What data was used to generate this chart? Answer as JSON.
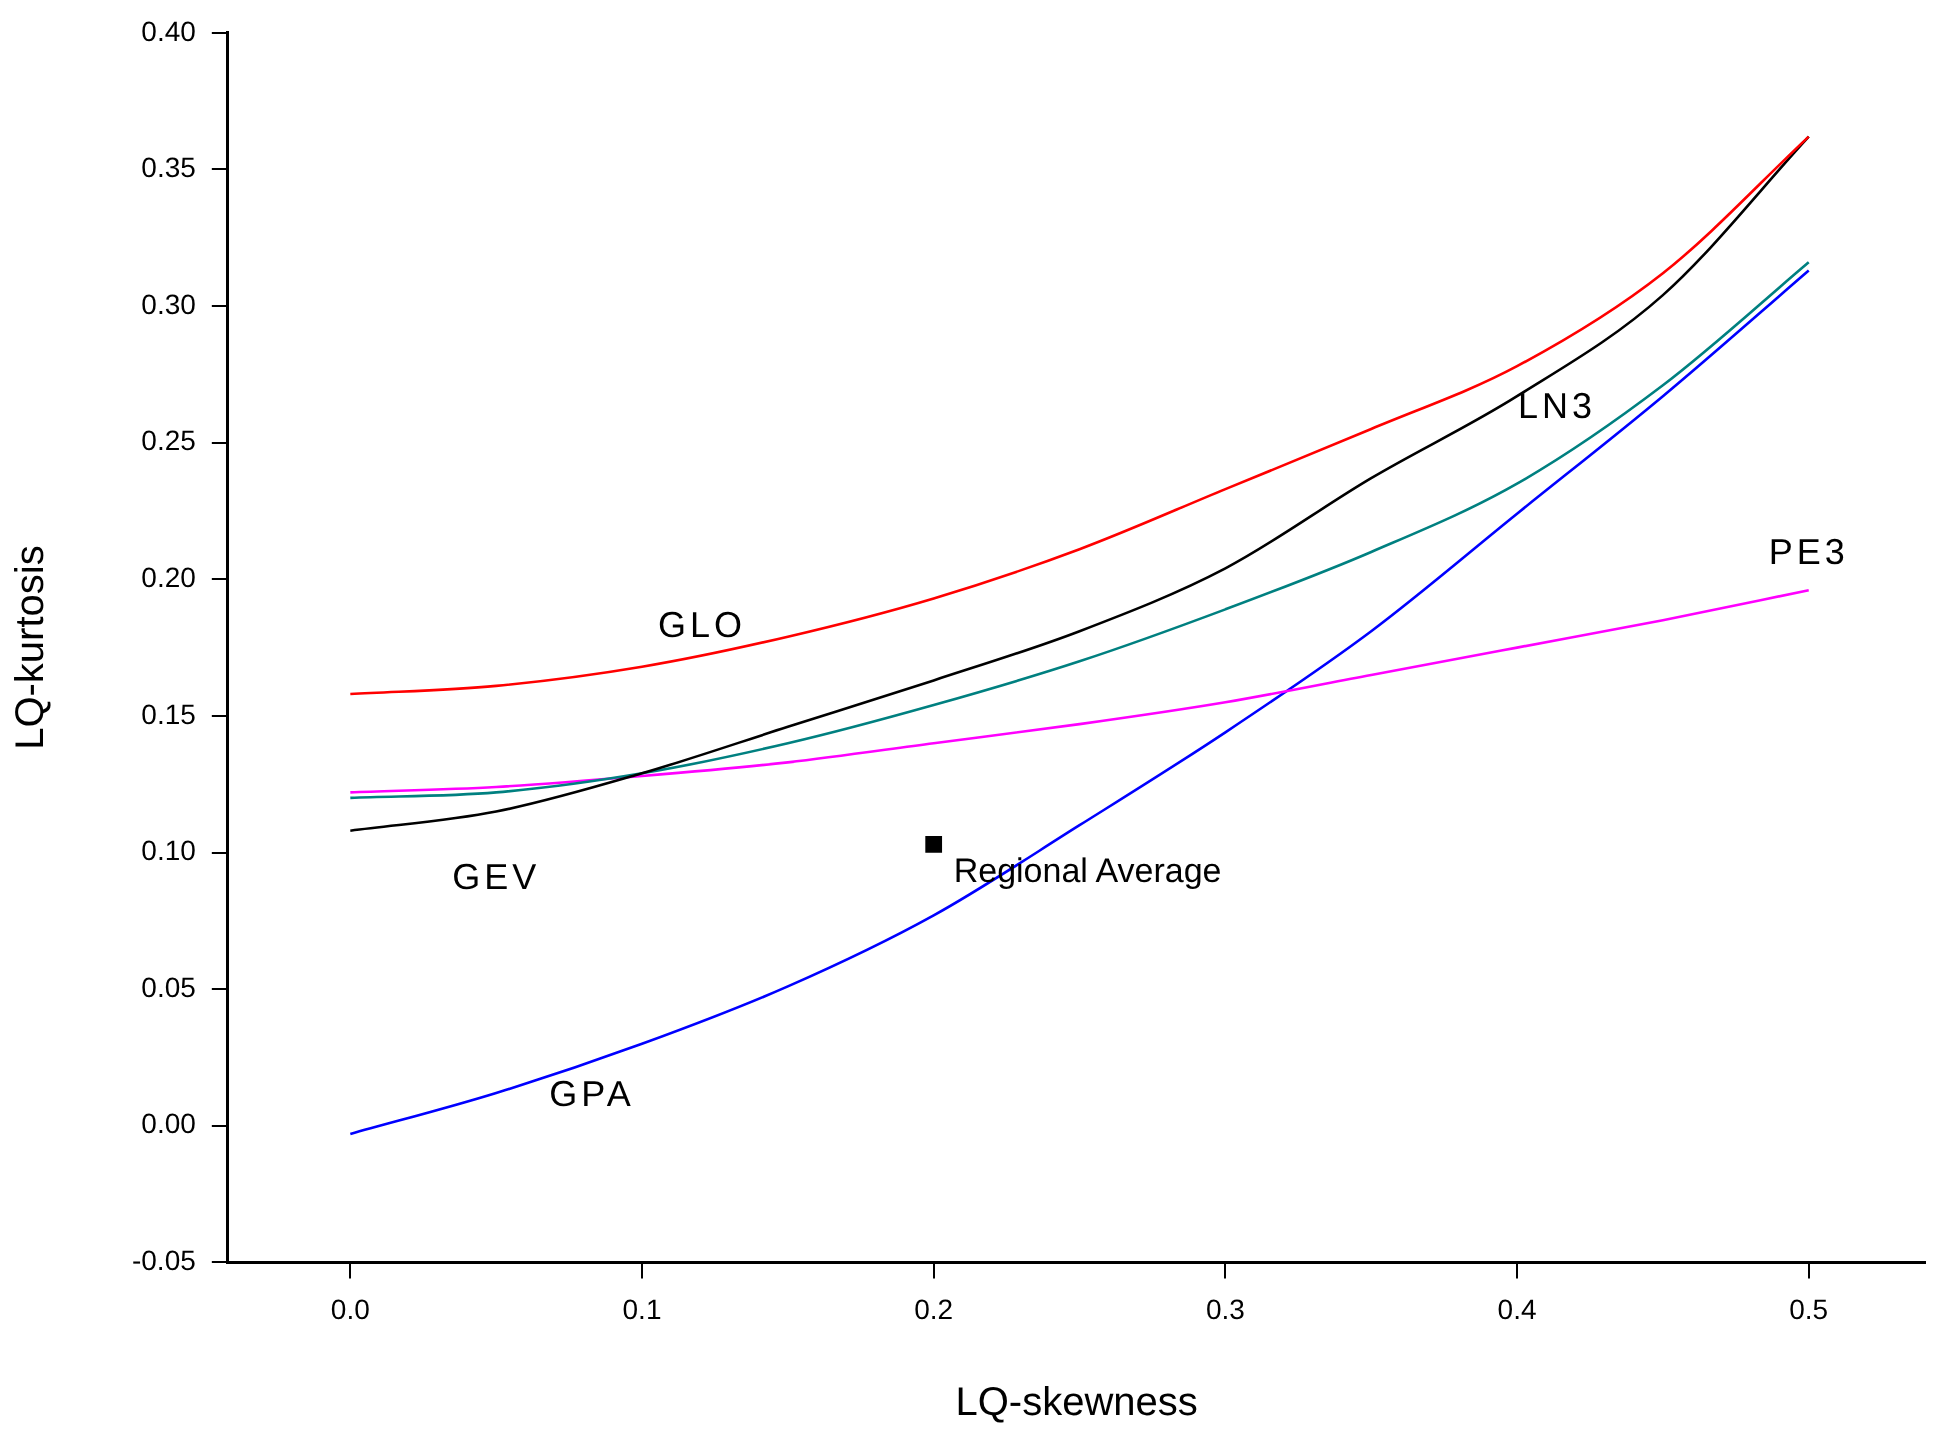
{
  "chart_data": {
    "type": "line",
    "xlabel": "LQ-skewness",
    "ylabel": "LQ-kurtosis",
    "xlim": [
      -0.042,
      0.54
    ],
    "ylim": [
      -0.05,
      0.4
    ],
    "xticks": [
      {
        "value": 0,
        "label": "0.0"
      },
      {
        "value": 0.1,
        "label": "0.1"
      },
      {
        "value": 0.2,
        "label": "0.2"
      },
      {
        "value": 0.3,
        "label": "0.3"
      },
      {
        "value": 0.4,
        "label": "0.4"
      },
      {
        "value": 0.5,
        "label": "0.5"
      }
    ],
    "yticks": [
      {
        "value": -0.05,
        "label": "-0.05"
      },
      {
        "value": 0,
        "label": "0.00"
      },
      {
        "value": 0.05,
        "label": "0.05"
      },
      {
        "value": 0.1,
        "label": "0.10"
      },
      {
        "value": 0.15,
        "label": "0.15"
      },
      {
        "value": 0.2,
        "label": "0.20"
      },
      {
        "value": 0.25,
        "label": "0.25"
      },
      {
        "value": 0.3,
        "label": "0.30"
      },
      {
        "value": 0.35,
        "label": "0.35"
      },
      {
        "value": 0.4,
        "label": "0.40"
      }
    ],
    "x": [
      0,
      0.05,
      0.1,
      0.15,
      0.2,
      0.25,
      0.3,
      0.35,
      0.4,
      0.45,
      0.5
    ],
    "grid": false,
    "legend": false,
    "marker": "none",
    "series": [
      {
        "name": "GLO",
        "color": "#ff0000",
        "values": [
          0.158,
          0.161,
          0.168,
          0.179,
          0.193,
          0.211,
          0.233,
          0.255,
          0.278,
          0.312,
          0.362
        ]
      },
      {
        "name": "GEV",
        "color": "#000000",
        "values": [
          0.108,
          0.115,
          0.129,
          0.146,
          0.163,
          0.181,
          0.204,
          0.237,
          0.267,
          0.304,
          0.362
        ]
      },
      {
        "name": "LN3",
        "color": "#008080",
        "values": [
          0.12,
          0.122,
          0.129,
          0.14,
          0.154,
          0.17,
          0.189,
          0.21,
          0.235,
          0.271,
          0.316
        ]
      },
      {
        "name": "PE3",
        "color": "#ff00ff",
        "values": [
          0.122,
          0.124,
          0.128,
          0.133,
          0.14,
          0.147,
          0.155,
          0.165,
          0.175,
          0.185,
          0.196
        ]
      },
      {
        "name": "GPA",
        "color": "#0000ff",
        "values": [
          -0.003,
          0.012,
          0.03,
          0.051,
          0.077,
          0.11,
          0.144,
          0.181,
          0.224,
          0.267,
          0.313
        ]
      },
      {
        "name": "Regional Average",
        "type": "scatter",
        "marker": "square",
        "color": "#000000",
        "x": [
          0.2
        ],
        "values": [
          0.103
        ]
      }
    ]
  }
}
